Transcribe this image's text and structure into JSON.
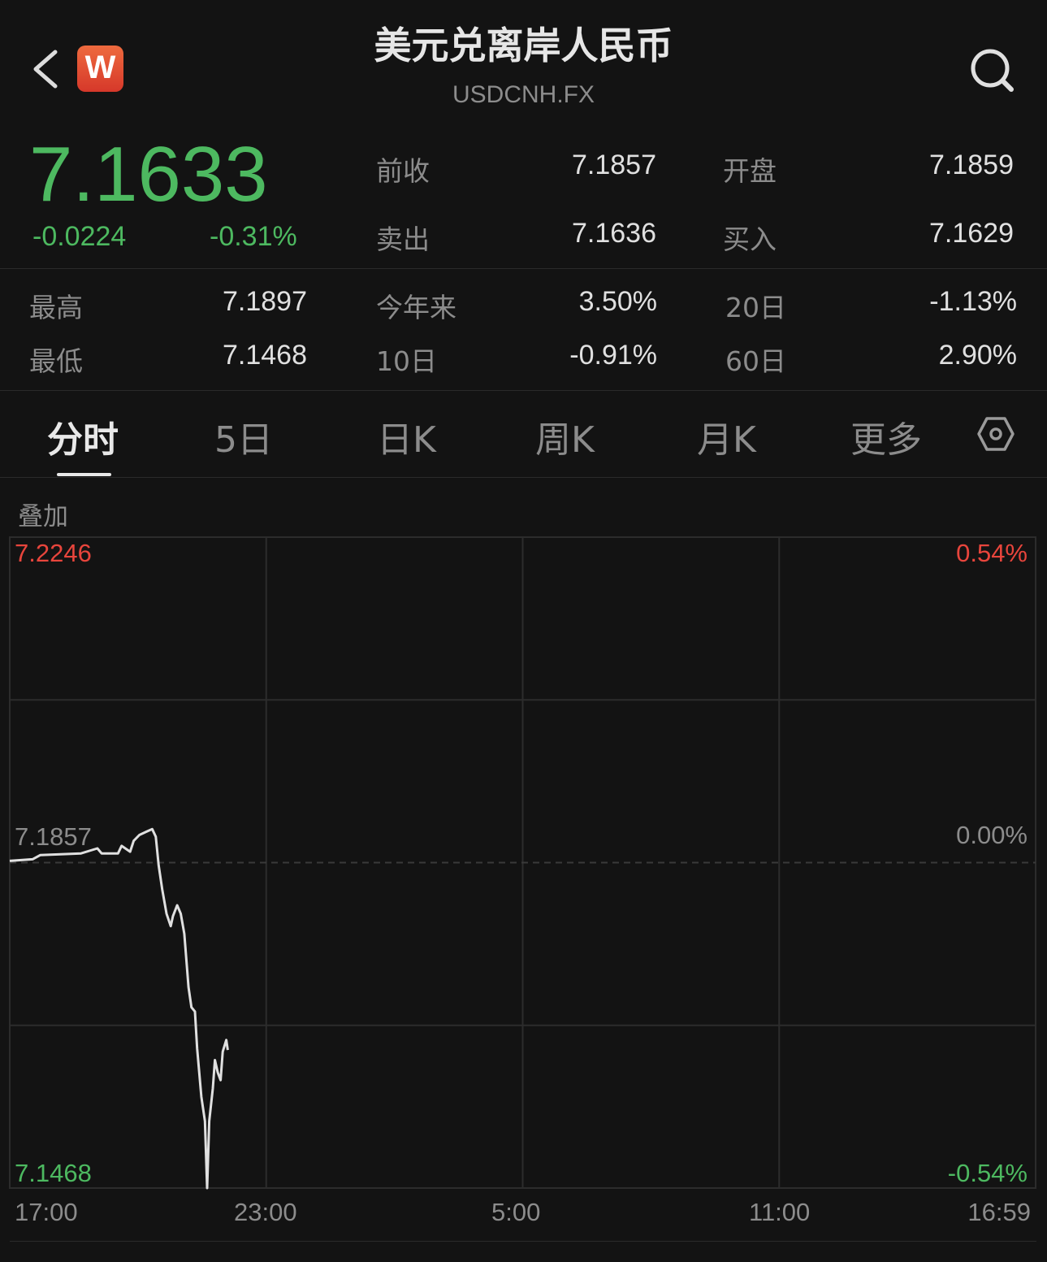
{
  "header": {
    "title": "美元兑离岸人民币",
    "symbol": "USDCNH.FX",
    "logo_text": "W",
    "back_icon": "chevron-left-icon",
    "search_icon": "search-icon"
  },
  "quote": {
    "price": "7.1633",
    "change": "-0.0224",
    "change_pct": "-0.31%",
    "stats": [
      {
        "label": "前收",
        "value": "7.1857"
      },
      {
        "label": "开盘",
        "value": "7.1859"
      },
      {
        "label": "卖出",
        "value": "7.1636"
      },
      {
        "label": "买入",
        "value": "7.1629"
      },
      {
        "label": "最高",
        "value": "7.1897"
      },
      {
        "label": "今年来",
        "value": "3.50%"
      },
      {
        "label": "20日",
        "value": "-1.13%"
      },
      {
        "label": "最低",
        "value": "7.1468"
      },
      {
        "label": "10日",
        "value": "-0.91%"
      },
      {
        "label": "60日",
        "value": "2.90%"
      }
    ]
  },
  "tabs": [
    {
      "label": "分时",
      "active": true
    },
    {
      "label": "5日"
    },
    {
      "label": "日K"
    },
    {
      "label": "周K"
    },
    {
      "label": "月K"
    },
    {
      "label": "更多"
    }
  ],
  "settings_icon": "hexagon-settings-icon",
  "overlay_label": "叠加",
  "colors": {
    "up": "#e8453c",
    "down": "#4db960",
    "line": "#e0e0e0",
    "bg": "#131313"
  },
  "chart_data": {
    "type": "line",
    "y_left_ticks": {
      "top": "7.2246",
      "mid": "7.1857",
      "bottom": "7.1468"
    },
    "y_right_ticks": {
      "top": "0.54%",
      "mid": "0.00%",
      "bottom": "-0.54%"
    },
    "ylim": [
      7.1468,
      7.2246
    ],
    "prev_close": 7.1857,
    "x_ticks": [
      "17:00",
      "23:00",
      "5:00",
      "11:00",
      "16:59"
    ],
    "grid": true,
    "series": [
      {
        "x": [
          "17:00",
          "17:32",
          "17:43",
          "18:40",
          "19:03",
          "19:09",
          "19:32",
          "19:37",
          "19:49",
          "19:54",
          "20:02",
          "20:12",
          "20:20",
          "20:25",
          "20:29",
          "20:34",
          "20:40",
          "20:46",
          "20:49",
          "20:55",
          "21:00",
          "21:05",
          "21:11",
          "21:15",
          "21:20",
          "21:23",
          "21:29",
          "21:34",
          "21:37",
          "21:40",
          "21:45",
          "21:48",
          "21:52",
          "21:56",
          "21:59",
          "22:04",
          "22:06"
        ],
        "y": [
          7.1859,
          7.1861,
          7.1866,
          7.1868,
          7.1874,
          7.1868,
          7.1868,
          7.1877,
          7.187,
          7.1883,
          7.189,
          7.1894,
          7.1897,
          7.1888,
          7.1854,
          7.1825,
          7.1796,
          7.1781,
          7.1793,
          7.1806,
          7.1796,
          7.1772,
          7.1708,
          7.1684,
          7.1679,
          7.1635,
          7.1577,
          7.1548,
          7.1468,
          7.1548,
          7.1587,
          7.1621,
          7.1606,
          7.1597,
          7.1631,
          7.1645,
          7.1633
        ]
      }
    ]
  }
}
